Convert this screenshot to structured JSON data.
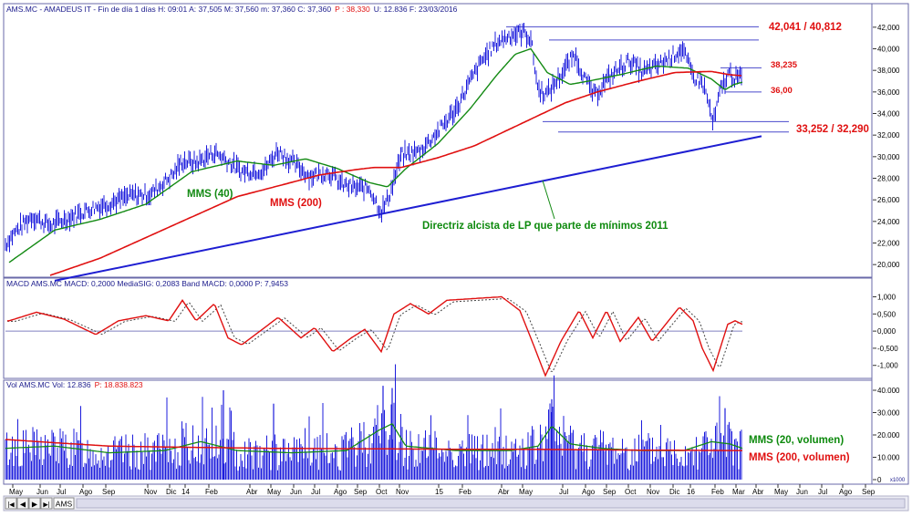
{
  "colors": {
    "price": "#1c1cdc",
    "mms40": "#138a13",
    "mms200": "#e01010",
    "trend": "#1e1ed2",
    "level": "#4a4acc",
    "macd": "#e01010",
    "signal": "#444444",
    "grid": "#8080c0",
    "frame": "#6a6aa8",
    "annot_red": "#e01010",
    "annot_green": "#0e8a0e"
  },
  "price_panel": {
    "header": "AMS.MC - AMADEUS IT - Fin de día 1 días H: 09:01 A: 37,505 M: 37,560 m: 37,360 C: 37,360",
    "header_p": "P : 38,330",
    "header_tail": "U: 12.836 F: 23/03/2016",
    "y_ticks": [
      "42,000",
      "40,000",
      "38,000",
      "36,000",
      "34,000",
      "32,000",
      "30,000",
      "28,000",
      "26,000",
      "24,000",
      "22,000",
      "20,000"
    ]
  },
  "annotations": {
    "resist_label": "42,041 / 40,812",
    "level1_label": "38,235",
    "level2_label": "36,00",
    "support_label": "33,252 / 32,290",
    "mms40_label": "MMS (40)",
    "mms200_label": "MMS (200)",
    "trend_label": "Directriz alcista de LP que parte de mínimos 2011"
  },
  "macd_panel": {
    "header": "MACD AMS.MC MACD: 0,2000 MediaSIG: 0,2083 Band MACD: 0,0000 P: 7,9453",
    "y_ticks": [
      "1,000",
      "0,500",
      "0,000",
      "-0,500",
      "-1,000"
    ]
  },
  "volume_panel": {
    "header": "Vol AMS.MC Vol: 12.836",
    "header_p": "P: 18.838.823",
    "y_ticks": [
      "40.000",
      "30.000",
      "20.000",
      "10.000",
      "0"
    ],
    "y_unit": "x1000",
    "mms20_label": "MMS (20, volumen)",
    "mms200_label": "MMS (200, volumen)"
  },
  "x_axis": {
    "month_labels": [
      "May",
      "Jun",
      "Jul",
      "Ago",
      "Sep",
      "Nov",
      "Dic",
      "14",
      "Feb",
      "Abr",
      "May",
      "Jun",
      "Jul",
      "Ago",
      "Sep",
      "Oct",
      "Nov",
      "15",
      "Feb",
      "Abr",
      "May",
      "Jul",
      "Ago",
      "Sep",
      "Oct",
      "Nov",
      "Dic",
      "16",
      "Feb",
      "Mar",
      "Abr",
      "May",
      "Jun",
      "Jul",
      "Ago",
      "Sep"
    ]
  },
  "nav": {
    "first": "|◀",
    "prev": "◀",
    "next": "▶",
    "last": "▶|",
    "ticker": "AMS"
  },
  "chart_data": {
    "type": "line",
    "title": "AMS.MC - AMADEUS IT - Fin de día",
    "xlabel": "",
    "ylabel": "",
    "ylim": [
      19,
      43
    ],
    "grid": false,
    "price_anchors": [
      [
        0,
        21.2
      ],
      [
        15,
        22.9
      ],
      [
        35,
        24.5
      ],
      [
        55,
        23.6
      ],
      [
        80,
        24.5
      ],
      [
        100,
        25.2
      ],
      [
        120,
        25.7
      ],
      [
        145,
        26.4
      ],
      [
        165,
        26.5
      ],
      [
        190,
        28.4
      ],
      [
        200,
        29.6
      ],
      [
        215,
        29.4
      ],
      [
        235,
        30.4
      ],
      [
        245,
        29.9
      ],
      [
        265,
        28.6
      ],
      [
        290,
        28.8
      ],
      [
        305,
        30.6
      ],
      [
        318,
        29.6
      ],
      [
        340,
        28.2
      ],
      [
        360,
        28.6
      ],
      [
        375,
        27.4
      ],
      [
        390,
        27.1
      ],
      [
        405,
        27.1
      ],
      [
        418,
        24.9
      ],
      [
        426,
        26.2
      ],
      [
        440,
        30.1
      ],
      [
        460,
        30.5
      ],
      [
        480,
        32.3
      ],
      [
        500,
        34.4
      ],
      [
        515,
        36.9
      ],
      [
        530,
        39.1
      ],
      [
        545,
        40.6
      ],
      [
        560,
        41.3
      ],
      [
        575,
        41.5
      ],
      [
        582,
        40.9
      ],
      [
        590,
        36.2
      ],
      [
        600,
        35.8
      ],
      [
        615,
        37.6
      ],
      [
        630,
        39.5
      ],
      [
        642,
        37.1
      ],
      [
        652,
        35.6
      ],
      [
        662,
        36.8
      ],
      [
        675,
        37.9
      ],
      [
        690,
        38.9
      ],
      [
        705,
        37.8
      ],
      [
        720,
        38.4
      ],
      [
        735,
        39.2
      ],
      [
        748,
        40.0
      ],
      [
        760,
        37.4
      ],
      [
        770,
        36.9
      ],
      [
        775,
        35.6
      ],
      [
        782,
        33.0
      ],
      [
        790,
        36.2
      ],
      [
        800,
        37.8
      ],
      [
        806,
        37.2
      ],
      [
        814,
        37.4
      ]
    ],
    "series": [
      {
        "name": "MMS (40)",
        "anchors": [
          [
            10,
            20.2
          ],
          [
            60,
            23.2
          ],
          [
            110,
            24.2
          ],
          [
            160,
            25.6
          ],
          [
            210,
            28.6
          ],
          [
            260,
            29.6
          ],
          [
            300,
            29.2
          ],
          [
            335,
            29.8
          ],
          [
            370,
            28.9
          ],
          [
            405,
            27.6
          ],
          [
            425,
            27.2
          ],
          [
            445,
            28.9
          ],
          [
            480,
            31.2
          ],
          [
            515,
            34.4
          ],
          [
            545,
            37.6
          ],
          [
            565,
            39.5
          ],
          [
            582,
            40.0
          ],
          [
            600,
            37.8
          ],
          [
            625,
            36.7
          ],
          [
            645,
            37.0
          ],
          [
            680,
            37.6
          ],
          [
            720,
            38.4
          ],
          [
            755,
            38.2
          ],
          [
            780,
            37.2
          ],
          [
            795,
            36.2
          ],
          [
            805,
            36.7
          ],
          [
            814,
            36.9
          ]
        ]
      },
      {
        "name": "MMS (200)",
        "anchors": [
          [
            55,
            19.0
          ],
          [
            110,
            20.6
          ],
          [
            160,
            22.5
          ],
          [
            210,
            24.4
          ],
          [
            260,
            26.3
          ],
          [
            310,
            27.4
          ],
          [
            350,
            28.3
          ],
          [
            390,
            28.8
          ],
          [
            410,
            29.0
          ],
          [
            440,
            29.0
          ],
          [
            480,
            29.9
          ],
          [
            520,
            31.0
          ],
          [
            560,
            32.6
          ],
          [
            590,
            33.8
          ],
          [
            620,
            35.0
          ],
          [
            655,
            36.0
          ],
          [
            700,
            37.0
          ],
          [
            740,
            37.8
          ],
          [
            780,
            37.9
          ],
          [
            800,
            37.6
          ],
          [
            814,
            37.5
          ]
        ]
      },
      {
        "name": "Directriz alcista de LP",
        "anchors": [
          [
            60,
            18.5
          ],
          [
            835,
            31.9
          ]
        ]
      }
    ],
    "horizontal_levels": [
      {
        "label": "42,041",
        "value": 42.041
      },
      {
        "label": "40,812",
        "value": 40.812
      },
      {
        "label": "38,235",
        "value": 38.235
      },
      {
        "label": "36,00",
        "value": 36.0
      },
      {
        "label": "33,252",
        "value": 33.252
      },
      {
        "label": "32,290",
        "value": 32.29
      }
    ],
    "macd": {
      "ylim": [
        -1.3,
        1.2
      ],
      "anchors": [
        [
          10,
          0.3
        ],
        [
          40,
          0.55
        ],
        [
          70,
          0.35
        ],
        [
          105,
          -0.1
        ],
        [
          130,
          0.3
        ],
        [
          160,
          0.45
        ],
        [
          185,
          0.3
        ],
        [
          200,
          0.9
        ],
        [
          215,
          0.3
        ],
        [
          235,
          0.8
        ],
        [
          250,
          -0.2
        ],
        [
          265,
          -0.4
        ],
        [
          290,
          0.1
        ],
        [
          305,
          0.4
        ],
        [
          330,
          -0.2
        ],
        [
          345,
          0.1
        ],
        [
          365,
          -0.6
        ],
        [
          385,
          -0.2
        ],
        [
          400,
          0.05
        ],
        [
          418,
          -0.6
        ],
        [
          432,
          0.5
        ],
        [
          450,
          0.8
        ],
        [
          470,
          0.5
        ],
        [
          490,
          0.9
        ],
        [
          520,
          0.95
        ],
        [
          550,
          1.0
        ],
        [
          570,
          0.6
        ],
        [
          585,
          -0.4
        ],
        [
          598,
          -1.3
        ],
        [
          615,
          -0.3
        ],
        [
          635,
          0.6
        ],
        [
          650,
          -0.2
        ],
        [
          665,
          0.6
        ],
        [
          680,
          -0.3
        ],
        [
          700,
          0.4
        ],
        [
          715,
          -0.3
        ],
        [
          730,
          0.2
        ],
        [
          745,
          0.7
        ],
        [
          760,
          0.3
        ],
        [
          770,
          -0.5
        ],
        [
          782,
          -1.15
        ],
        [
          798,
          0.2
        ],
        [
          806,
          0.3
        ],
        [
          814,
          0.2
        ]
      ]
    },
    "volume": {
      "ylim": [
        0,
        40
      ],
      "unit": "x1000",
      "mms20_anchors": [
        [
          5,
          14
        ],
        [
          60,
          15
        ],
        [
          120,
          12
        ],
        [
          180,
          13
        ],
        [
          220,
          17
        ],
        [
          260,
          13
        ],
        [
          320,
          12
        ],
        [
          380,
          13
        ],
        [
          415,
          22
        ],
        [
          430,
          25
        ],
        [
          445,
          15
        ],
        [
          500,
          13
        ],
        [
          560,
          13
        ],
        [
          590,
          15
        ],
        [
          605,
          24
        ],
        [
          625,
          16
        ],
        [
          660,
          14
        ],
        [
          700,
          13
        ],
        [
          750,
          13
        ],
        [
          780,
          17
        ],
        [
          800,
          16
        ],
        [
          814,
          14
        ]
      ],
      "mms200_anchors": [
        [
          5,
          18
        ],
        [
          60,
          16.5
        ],
        [
          120,
          15
        ],
        [
          200,
          14.5
        ],
        [
          300,
          14
        ],
        [
          400,
          13.8
        ],
        [
          500,
          13.6
        ],
        [
          600,
          13.5
        ],
        [
          700,
          13.2
        ],
        [
          814,
          13
        ]
      ],
      "spikes": [
        [
          245,
          40
        ],
        [
          300,
          34
        ],
        [
          420,
          42
        ],
        [
          430,
          41
        ],
        [
          605,
          36
        ],
        [
          795,
          32
        ]
      ]
    }
  }
}
